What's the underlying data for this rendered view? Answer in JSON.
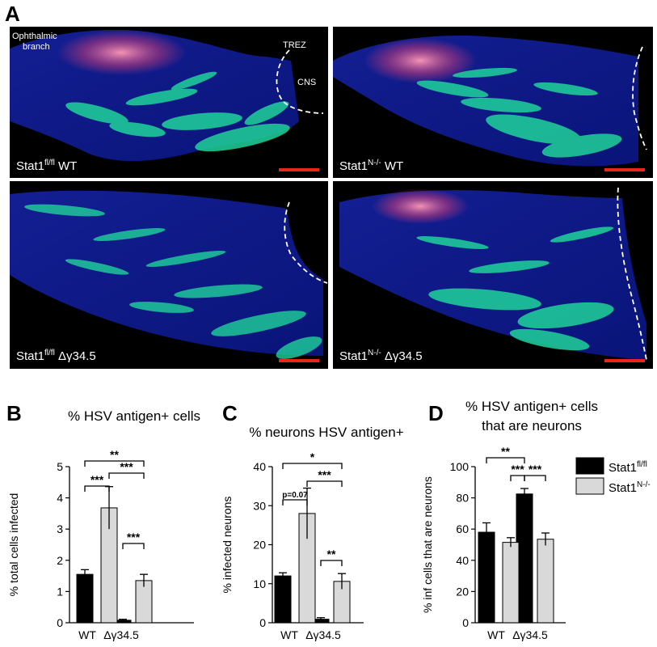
{
  "panel_a": {
    "letter": "A",
    "images": [
      {
        "label_main": "Stat1",
        "label_sup": "fl/fl",
        "label_rest": " WT",
        "annotations": [
          "Ophthalmic",
          "branch",
          "TREZ",
          "CNS"
        ]
      },
      {
        "label_main": "Stat1",
        "label_sup": "N-/-",
        "label_rest": " WT",
        "annotations": []
      },
      {
        "label_main": "Stat1",
        "label_sup": "fl/fl",
        "label_rest": " Δγ34.5",
        "annotations": []
      },
      {
        "label_main": "Stat1",
        "label_sup": "N-/-",
        "label_rest": " Δγ34.5",
        "annotations": []
      }
    ],
    "colors": {
      "background": "#000000",
      "tissue": "#0b1aa8",
      "neurons": "#1fd39a",
      "antigen": "#e05a8a",
      "scale_bar": "#e8261a"
    }
  },
  "legend": {
    "entries": [
      {
        "main": "Stat1",
        "sup": "fl/fl",
        "color": "#000000"
      },
      {
        "main": "Stat1",
        "sup": "N-/-",
        "color": "#d9d9d9"
      }
    ]
  },
  "chart_data": [
    {
      "panel": "B",
      "type": "bar",
      "title": "% HSV antigen+ cells",
      "ylabel": "% total cells infected",
      "categories": [
        "WT",
        "Δγ34.5"
      ],
      "ylim": [
        0,
        5
      ],
      "yticks": [
        "0",
        "1",
        "2",
        "3",
        "4",
        "5"
      ],
      "series": [
        {
          "values": [
            1.55,
            0.08
          ],
          "errors": [
            0.15,
            0.03
          ],
          "color": "#000000"
        },
        {
          "values": [
            3.68,
            1.35
          ],
          "errors": [
            0.68,
            0.2
          ],
          "color": "#d9d9d9"
        }
      ],
      "significance": [
        "***",
        "***",
        "**",
        "***"
      ]
    },
    {
      "panel": "C",
      "type": "bar",
      "title": "% neurons HSV antigen+",
      "ylabel": "% infected neurons",
      "categories": [
        "WT",
        "Δγ34.5"
      ],
      "ylim": [
        0,
        40
      ],
      "yticks": [
        "0",
        "10",
        "20",
        "30",
        "40"
      ],
      "series": [
        {
          "values": [
            12.0,
            0.9
          ],
          "errors": [
            0.8,
            0.4
          ],
          "color": "#000000"
        },
        {
          "values": [
            28.0,
            10.6
          ],
          "errors": [
            6.5,
            2.0
          ],
          "color": "#d9d9d9"
        }
      ],
      "significance": [
        "p=0.07",
        "***",
        "*",
        "**"
      ]
    },
    {
      "panel": "D",
      "type": "bar",
      "title_lines": [
        "% HSV antigen+ cells",
        "that are neurons"
      ],
      "ylabel": "% inf cells that are neurons",
      "categories": [
        "WT",
        "Δγ34.5"
      ],
      "ylim": [
        0,
        100
      ],
      "yticks": [
        "0",
        "20",
        "40",
        "60",
        "80",
        "100"
      ],
      "series": [
        {
          "values": [
            58.0,
            82.5
          ],
          "errors": [
            6.0,
            3.5
          ],
          "color": "#000000"
        },
        {
          "values": [
            51.5,
            53.5
          ],
          "errors": [
            3.0,
            4.0
          ],
          "color": "#d9d9d9"
        }
      ],
      "significance": [
        "**",
        "***",
        "***"
      ]
    }
  ]
}
